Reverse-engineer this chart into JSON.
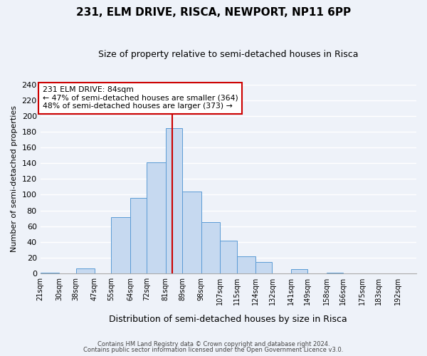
{
  "title": "231, ELM DRIVE, RISCA, NEWPORT, NP11 6PP",
  "subtitle": "Size of property relative to semi-detached houses in Risca",
  "xlabel": "Distribution of semi-detached houses by size in Risca",
  "ylabel": "Number of semi-detached properties",
  "bin_labels": [
    "21sqm",
    "30sqm",
    "38sqm",
    "47sqm",
    "55sqm",
    "64sqm",
    "72sqm",
    "81sqm",
    "89sqm",
    "98sqm",
    "107sqm",
    "115sqm",
    "124sqm",
    "132sqm",
    "141sqm",
    "149sqm",
    "158sqm",
    "166sqm",
    "175sqm",
    "183sqm",
    "192sqm"
  ],
  "bar_color": "#c6d9f0",
  "bar_edge_color": "#5b9bd5",
  "vline_x": 84,
  "vline_color": "#cc0000",
  "ylim": [
    0,
    240
  ],
  "yticks": [
    0,
    20,
    40,
    60,
    80,
    100,
    120,
    140,
    160,
    180,
    200,
    220,
    240
  ],
  "annotation_title": "231 ELM DRIVE: 84sqm",
  "annotation_line1": "← 47% of semi-detached houses are smaller (364)",
  "annotation_line2": "48% of semi-detached houses are larger (373) →",
  "annotation_box_color": "#ffffff",
  "annotation_box_edge": "#cc0000",
  "footnote1": "Contains HM Land Registry data © Crown copyright and database right 2024.",
  "footnote2": "Contains public sector information licensed under the Open Government Licence v3.0.",
  "background_color": "#eef2f9",
  "grid_color": "#ffffff",
  "bar_data": [
    [
      21,
      30,
      1
    ],
    [
      30,
      38,
      0
    ],
    [
      38,
      47,
      6
    ],
    [
      47,
      55,
      0
    ],
    [
      55,
      64,
      71
    ],
    [
      64,
      72,
      96
    ],
    [
      72,
      81,
      141
    ],
    [
      81,
      89,
      185
    ],
    [
      89,
      98,
      104
    ],
    [
      98,
      107,
      65
    ],
    [
      107,
      115,
      42
    ],
    [
      115,
      124,
      22
    ],
    [
      124,
      132,
      14
    ],
    [
      132,
      141,
      0
    ],
    [
      141,
      149,
      5
    ],
    [
      149,
      158,
      0
    ],
    [
      158,
      166,
      1
    ],
    [
      166,
      175,
      0
    ],
    [
      175,
      183,
      0
    ],
    [
      183,
      192,
      0
    ],
    [
      192,
      201,
      0
    ]
  ]
}
